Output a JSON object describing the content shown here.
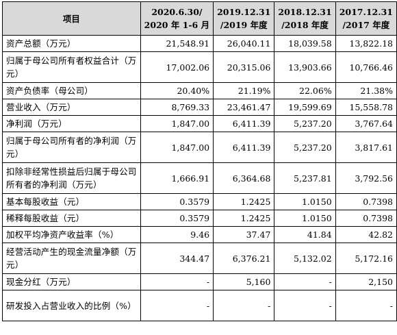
{
  "header": {
    "item": "项目",
    "periods": [
      {
        "line1": "2020.6.30/",
        "line2": "2020 年 1-6 月"
      },
      {
        "line1": "2019.12.31",
        "line2": "/2019 年度"
      },
      {
        "line1": "2018.12.31",
        "line2": "/2018 年度"
      },
      {
        "line1": "2017.12.31",
        "line2": "/2017 年度"
      }
    ]
  },
  "rows": [
    {
      "label": "资产总额（万元）",
      "values": [
        "21,548.91",
        "26,040.11",
        "18,039.58",
        "13,822.18"
      ]
    },
    {
      "label": "归属于母公司所有者权益合计（万元）",
      "values": [
        "17,002.06",
        "20,315.06",
        "13,903.66",
        "10,766.46"
      ]
    },
    {
      "label": "资产负债率（母公司）",
      "values": [
        "20.40%",
        "21.19%",
        "22.06%",
        "21.38%"
      ]
    },
    {
      "label": "营业收入（万元）",
      "values": [
        "8,769.33",
        "23,461.47",
        "19,599.69",
        "15,558.78"
      ]
    },
    {
      "label": "净利润（万元）",
      "values": [
        "1,847.00",
        "6,411.39",
        "5,237.20",
        "3,767.64"
      ]
    },
    {
      "label": "归属于母公司所有者的净利润（万元）",
      "values": [
        "1,847.00",
        "6,411.39",
        "5,237.20",
        "3,817.61"
      ]
    },
    {
      "label": "扣除非经常性损益后归属于母公司所有者的净利润（万元）",
      "values": [
        "1,666.91",
        "6,364.68",
        "5,237.81",
        "3,792.56"
      ]
    },
    {
      "label": "基本每股收益（元）",
      "values": [
        "0.3579",
        "1.2425",
        "1.0150",
        "0.7398"
      ]
    },
    {
      "label": "稀释每股收益（元）",
      "values": [
        "0.3579",
        "1.2425",
        "1.0150",
        "0.7398"
      ]
    },
    {
      "label": "加权平均净资产收益率（%）",
      "values": [
        "9.46",
        "37.47",
        "41.84",
        "42.82"
      ]
    },
    {
      "label": "经营活动产生的现金流量净额（万元）",
      "values": [
        "344.47",
        "6,376.21",
        "5,132.02",
        "5,172.16"
      ]
    },
    {
      "label": "现金分红（万元）",
      "values": [
        "-",
        "5,160",
        "-",
        "2,150"
      ]
    },
    {
      "label": "研发投入占营业收入的比例（%）",
      "values": [
        "-",
        "-",
        "-",
        "-"
      ]
    }
  ]
}
